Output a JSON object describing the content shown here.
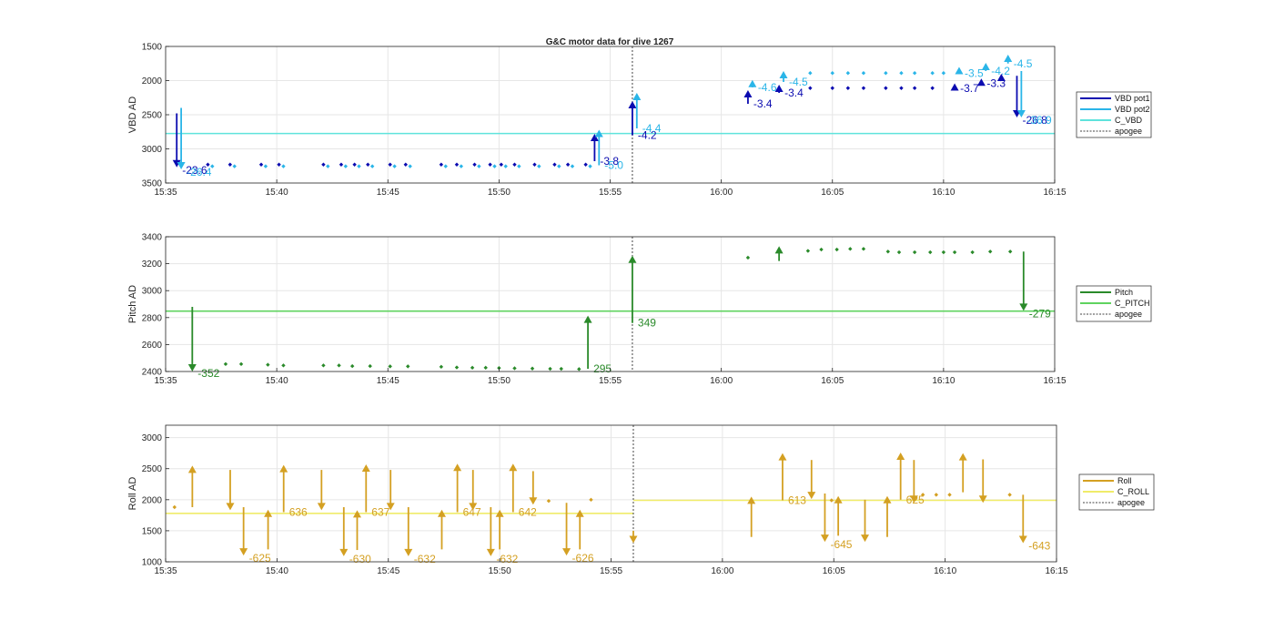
{
  "figure_title": "G&C motor data for dive 1267",
  "colors": {
    "vbd_pot1": "#0b0bb0",
    "vbd_pot2": "#2ab5e8",
    "c_vbd": "#5fe3dc",
    "pitch": "#2a8a2a",
    "c_pitch": "#5fd35f",
    "roll": "#d4a022",
    "c_roll": "#f0ec6a",
    "apogee": "#444444",
    "grid": "#e6e6e6",
    "axis": "#262626"
  },
  "chart_data": [
    {
      "type": "line",
      "title": "G&C motor data for dive 1267",
      "ylabel": "VBD AD",
      "ylim": [
        1500,
        3500
      ],
      "y_reversed": true,
      "yticks": [
        1500,
        2000,
        2500,
        3000,
        3500
      ],
      "xlim": [
        "15:35",
        "16:15"
      ],
      "xticks": [
        "15:35",
        "15:40",
        "15:45",
        "15:50",
        "15:55",
        "16:00",
        "16:05",
        "16:10",
        "16:15"
      ],
      "grid": true,
      "legend": {
        "placement": "outside-right",
        "entries": [
          {
            "label": "VBD pot1",
            "style": "solid",
            "color_key": "vbd_pot1"
          },
          {
            "label": "VBD pot2",
            "style": "solid",
            "color_key": "vbd_pot2"
          },
          {
            "label": "C_VBD",
            "style": "solid",
            "color_key": "c_vbd"
          },
          {
            "label": "apogee",
            "style": "dotted",
            "color_key": "apogee"
          }
        ]
      },
      "reference_line": {
        "name": "C_VBD",
        "value": 2775,
        "color_key": "c_vbd"
      },
      "apogee": "15:56",
      "series": [
        {
          "name": "VBD pot1",
          "color_key": "vbd_pot1",
          "points": [
            [
              "15:36.9",
              3230
            ],
            [
              "15:37.9",
              3230
            ],
            [
              "15:39.3",
              3230
            ],
            [
              "15:40.1",
              3230
            ],
            [
              "15:42.1",
              3230
            ],
            [
              "15:42.9",
              3230
            ],
            [
              "15:43.5",
              3230
            ],
            [
              "15:44.1",
              3230
            ],
            [
              "15:45.1",
              3230
            ],
            [
              "15:45.8",
              3230
            ],
            [
              "15:47.4",
              3230
            ],
            [
              "15:48.1",
              3230
            ],
            [
              "15:48.9",
              3230
            ],
            [
              "15:49.6",
              3230
            ],
            [
              "15:50.1",
              3230
            ],
            [
              "15:50.7",
              3230
            ],
            [
              "15:51.6",
              3230
            ],
            [
              "15:52.5",
              3230
            ],
            [
              "15:53.1",
              3230
            ],
            [
              "15:53.9",
              3230
            ],
            [
              "16:04.0",
              2110
            ],
            [
              "16:05.0",
              2110
            ],
            [
              "16:05.7",
              2110
            ],
            [
              "16:06.4",
              2110
            ],
            [
              "16:07.4",
              2110
            ],
            [
              "16:08.1",
              2110
            ],
            [
              "16:08.7",
              2110
            ],
            [
              "16:09.5",
              2110
            ]
          ],
          "arrows": [
            {
              "x": "15:35.5",
              "from": 2480,
              "to": 3270,
              "label": "-23.6"
            },
            {
              "x": "15:54.3",
              "from": 3180,
              "to": 2780,
              "label": "-3.8"
            },
            {
              "x": "15:56.0",
              "from": 2800,
              "to": 2300,
              "label": "-4.2"
            },
            {
              "x": "16:01.2",
              "from": 2340,
              "to": 2140,
              "label": "-3.4"
            },
            {
              "x": "16:02.6",
              "from": 2180,
              "to": 2060,
              "label": "-3.4"
            },
            {
              "x": "16:10.5",
              "from": 2110,
              "to": 2040,
              "label": "-3.7"
            },
            {
              "x": "16:11.7",
              "from": 2040,
              "to": 1970,
              "label": "-3.3"
            },
            {
              "x": "16:12.6",
              "from": 1980,
              "to": 1900,
              "label": ""
            },
            {
              "x": "16:13.3",
              "from": 1930,
              "to": 2540,
              "label": "-26.8"
            }
          ]
        },
        {
          "name": "VBD pot2",
          "color_key": "vbd_pot2",
          "points": [
            [
              "15:37.1",
              3255
            ],
            [
              "15:38.1",
              3255
            ],
            [
              "15:39.5",
              3255
            ],
            [
              "15:40.3",
              3255
            ],
            [
              "15:42.3",
              3255
            ],
            [
              "15:43.1",
              3255
            ],
            [
              "15:43.7",
              3255
            ],
            [
              "15:44.3",
              3255
            ],
            [
              "15:45.3",
              3255
            ],
            [
              "15:46.0",
              3255
            ],
            [
              "15:47.6",
              3255
            ],
            [
              "15:48.3",
              3255
            ],
            [
              "15:49.1",
              3255
            ],
            [
              "15:49.8",
              3255
            ],
            [
              "15:50.3",
              3255
            ],
            [
              "15:50.9",
              3255
            ],
            [
              "15:51.8",
              3255
            ],
            [
              "15:52.7",
              3255
            ],
            [
              "15:53.3",
              3255
            ],
            [
              "15:54.1",
              3255
            ],
            [
              "16:04.0",
              1890
            ],
            [
              "16:05.0",
              1890
            ],
            [
              "16:05.7",
              1890
            ],
            [
              "16:06.4",
              1890
            ],
            [
              "16:07.4",
              1890
            ],
            [
              "16:08.1",
              1890
            ],
            [
              "16:08.7",
              1890
            ],
            [
              "16:09.5",
              1890
            ],
            [
              "16:10.0",
              1890
            ]
          ],
          "arrows": [
            {
              "x": "15:35.7",
              "from": 2400,
              "to": 3300,
              "label": "-26.4"
            },
            {
              "x": "15:54.5",
              "from": 3240,
              "to": 2720,
              "label": "-5.0"
            },
            {
              "x": "15:56.2",
              "from": 2700,
              "to": 2180,
              "label": "-4.4"
            },
            {
              "x": "16:01.4",
              "from": 2100,
              "to": 1990,
              "label": "-4.6"
            },
            {
              "x": "16:02.8",
              "from": 2020,
              "to": 1860,
              "label": "-4.5"
            },
            {
              "x": "16:10.7",
              "from": 1890,
              "to": 1800,
              "label": "-3.5"
            },
            {
              "x": "16:11.9",
              "from": 1860,
              "to": 1740,
              "label": "-4.2"
            },
            {
              "x": "16:12.9",
              "from": 1750,
              "to": 1620,
              "label": "-4.5"
            },
            {
              "x": "16:13.5",
              "from": 1860,
              "to": 2540,
              "label": "-36.9"
            }
          ]
        }
      ]
    },
    {
      "type": "line",
      "ylabel": "Pitch AD",
      "ylim": [
        2400,
        3400
      ],
      "yticks": [
        2400,
        2600,
        2800,
        3000,
        3200,
        3400
      ],
      "xlim": [
        "15:35",
        "16:15"
      ],
      "xticks": [
        "15:35",
        "15:40",
        "15:45",
        "15:50",
        "15:55",
        "16:00",
        "16:05",
        "16:10",
        "16:15"
      ],
      "grid": true,
      "legend": {
        "placement": "outside-right",
        "entries": [
          {
            "label": "Pitch",
            "style": "solid",
            "color_key": "pitch"
          },
          {
            "label": "C_PITCH",
            "style": "solid",
            "color_key": "c_pitch"
          },
          {
            "label": "apogee",
            "style": "dotted",
            "color_key": "apogee"
          }
        ]
      },
      "reference_line": {
        "name": "C_PITCH",
        "value": 2848,
        "color_key": "c_pitch"
      },
      "apogee": "15:56",
      "series": [
        {
          "name": "Pitch",
          "color_key": "pitch",
          "points": [
            [
              "15:37.7",
              2455
            ],
            [
              "15:38.4",
              2455
            ],
            [
              "15:39.6",
              2450
            ],
            [
              "15:40.3",
              2445
            ],
            [
              "15:42.1",
              2445
            ],
            [
              "15:42.8",
              2445
            ],
            [
              "15:43.4",
              2440
            ],
            [
              "15:44.2",
              2440
            ],
            [
              "15:45.1",
              2438
            ],
            [
              "15:45.9",
              2438
            ],
            [
              "15:47.4",
              2435
            ],
            [
              "15:48.1",
              2430
            ],
            [
              "15:48.8",
              2428
            ],
            [
              "15:49.4",
              2428
            ],
            [
              "15:50.0",
              2426
            ],
            [
              "15:50.7",
              2424
            ],
            [
              "15:51.5",
              2422
            ],
            [
              "15:52.3",
              2420
            ],
            [
              "15:52.8",
              2420
            ],
            [
              "15:53.6",
              2418
            ],
            [
              "16:01.2",
              3245
            ],
            [
              "16:03.9",
              3295
            ],
            [
              "16:04.5",
              3305
            ],
            [
              "16:05.2",
              3305
            ],
            [
              "16:05.8",
              3310
            ],
            [
              "16:06.4",
              3310
            ],
            [
              "16:07.5",
              3290
            ],
            [
              "16:08.0",
              3285
            ],
            [
              "16:08.7",
              3285
            ],
            [
              "16:09.4",
              3285
            ],
            [
              "16:10.0",
              3285
            ],
            [
              "16:10.5",
              3285
            ],
            [
              "16:11.3",
              3285
            ],
            [
              "16:12.1",
              3290
            ],
            [
              "16:13.0",
              3290
            ]
          ],
          "arrows": [
            {
              "x": "15:36.2",
              "from": 2880,
              "to": 2400,
              "label": "-352"
            },
            {
              "x": "15:54.0",
              "from": 2420,
              "to": 2815,
              "label": "295"
            },
            {
              "x": "15:56.0",
              "from": 2760,
              "to": 3260,
              "label": "349"
            },
            {
              "x": "16:02.6",
              "from": 3220,
              "to": 3330,
              "label": ""
            },
            {
              "x": "16:13.6",
              "from": 3290,
              "to": 2850,
              "label": "-279"
            }
          ]
        }
      ]
    },
    {
      "type": "line",
      "ylabel": "Roll AD",
      "ylim": [
        1000,
        3200
      ],
      "yticks": [
        1000,
        1500,
        2000,
        2500,
        3000
      ],
      "xlim": [
        "15:35",
        "16:15"
      ],
      "xticks": [
        "15:35",
        "15:40",
        "15:45",
        "15:50",
        "15:55",
        "16:00",
        "16:05",
        "16:10",
        "16:15"
      ],
      "grid": true,
      "legend": {
        "placement": "outside-right",
        "entries": [
          {
            "label": "Roll",
            "style": "solid",
            "color_key": "roll"
          },
          {
            "label": "C_ROLL",
            "style": "solid",
            "color_key": "c_roll"
          },
          {
            "label": "apogee",
            "style": "dotted",
            "color_key": "apogee"
          }
        ]
      },
      "reference_lines": [
        {
          "name": "C_ROLL",
          "value": 1780,
          "from": "15:35",
          "to": "15:56",
          "color_key": "c_roll"
        },
        {
          "name": "C_ROLL",
          "value": 1990,
          "from": "15:56",
          "to": "16:15",
          "color_key": "c_roll"
        }
      ],
      "apogee": "15:56",
      "series": [
        {
          "name": "Roll",
          "color_key": "roll",
          "points": [
            [
              "15:35.4",
              1880
            ],
            [
              "15:52.2",
              1980
            ],
            [
              "15:54.1",
              2000
            ],
            [
              "16:04.9",
              1990
            ],
            [
              "16:09.0",
              2080
            ],
            [
              "16:09.6",
              2080
            ],
            [
              "16:10.2",
              2080
            ],
            [
              "16:12.9",
              2080
            ]
          ],
          "arrows": [
            {
              "x": "15:36.2",
              "from": 1880,
              "to": 2550,
              "label": ""
            },
            {
              "x": "15:37.9",
              "from": 2480,
              "to": 1830,
              "label": ""
            },
            {
              "x": "15:38.5",
              "from": 1880,
              "to": 1100,
              "label": "-625"
            },
            {
              "x": "15:39.6",
              "from": 1200,
              "to": 1840,
              "label": ""
            },
            {
              "x": "15:40.3",
              "from": 1800,
              "to": 2560,
              "label": "636"
            },
            {
              "x": "15:42.0",
              "from": 2480,
              "to": 1830,
              "label": ""
            },
            {
              "x": "15:43.0",
              "from": 1880,
              "to": 1090,
              "label": "-630"
            },
            {
              "x": "15:43.6",
              "from": 1190,
              "to": 1830,
              "label": ""
            },
            {
              "x": "15:44.0",
              "from": 1800,
              "to": 2570,
              "label": "637"
            },
            {
              "x": "15:45.1",
              "from": 2480,
              "to": 1830,
              "label": ""
            },
            {
              "x": "15:45.9",
              "from": 1880,
              "to": 1090,
              "label": "-632"
            },
            {
              "x": "15:47.4",
              "from": 1200,
              "to": 1840,
              "label": ""
            },
            {
              "x": "15:48.1",
              "from": 1800,
              "to": 2580,
              "label": "647"
            },
            {
              "x": "15:48.8",
              "from": 2480,
              "to": 1830,
              "label": ""
            },
            {
              "x": "15:49.6",
              "from": 1880,
              "to": 1090,
              "label": "-632"
            },
            {
              "x": "15:50.0",
              "from": 1200,
              "to": 1840,
              "label": ""
            },
            {
              "x": "15:50.6",
              "from": 1800,
              "to": 2580,
              "label": "642"
            },
            {
              "x": "15:51.5",
              "from": 2460,
              "to": 1920,
              "label": ""
            },
            {
              "x": "15:53.0",
              "from": 1950,
              "to": 1100,
              "label": "-626"
            },
            {
              "x": "15:53.6",
              "from": 1200,
              "to": 1840,
              "label": ""
            },
            {
              "x": "15:56.0",
              "from": 1500,
              "to": 1300,
              "label": ""
            },
            {
              "x": "16:01.3",
              "from": 1400,
              "to": 2050,
              "label": ""
            },
            {
              "x": "16:02.7",
              "from": 1990,
              "to": 2750,
              "label": "613"
            },
            {
              "x": "16:04.0",
              "from": 2640,
              "to": 2010,
              "label": ""
            },
            {
              "x": "16:04.6",
              "from": 2100,
              "to": 1320,
              "label": "-645"
            },
            {
              "x": "16:05.2",
              "from": 1420,
              "to": 2060,
              "label": ""
            },
            {
              "x": "16:06.4",
              "from": 2000,
              "to": 1320,
              "label": ""
            },
            {
              "x": "16:07.4",
              "from": 1400,
              "to": 2060,
              "label": ""
            },
            {
              "x": "16:08.0",
              "from": 2000,
              "to": 2760,
              "label": "625"
            },
            {
              "x": "16:08.6",
              "from": 2640,
              "to": 1950,
              "label": ""
            },
            {
              "x": "16:10.8",
              "from": 2120,
              "to": 2750,
              "label": ""
            },
            {
              "x": "16:11.7",
              "from": 2650,
              "to": 1950,
              "label": ""
            },
            {
              "x": "16:13.5",
              "from": 2080,
              "to": 1300,
              "label": "-643"
            }
          ]
        }
      ]
    }
  ]
}
